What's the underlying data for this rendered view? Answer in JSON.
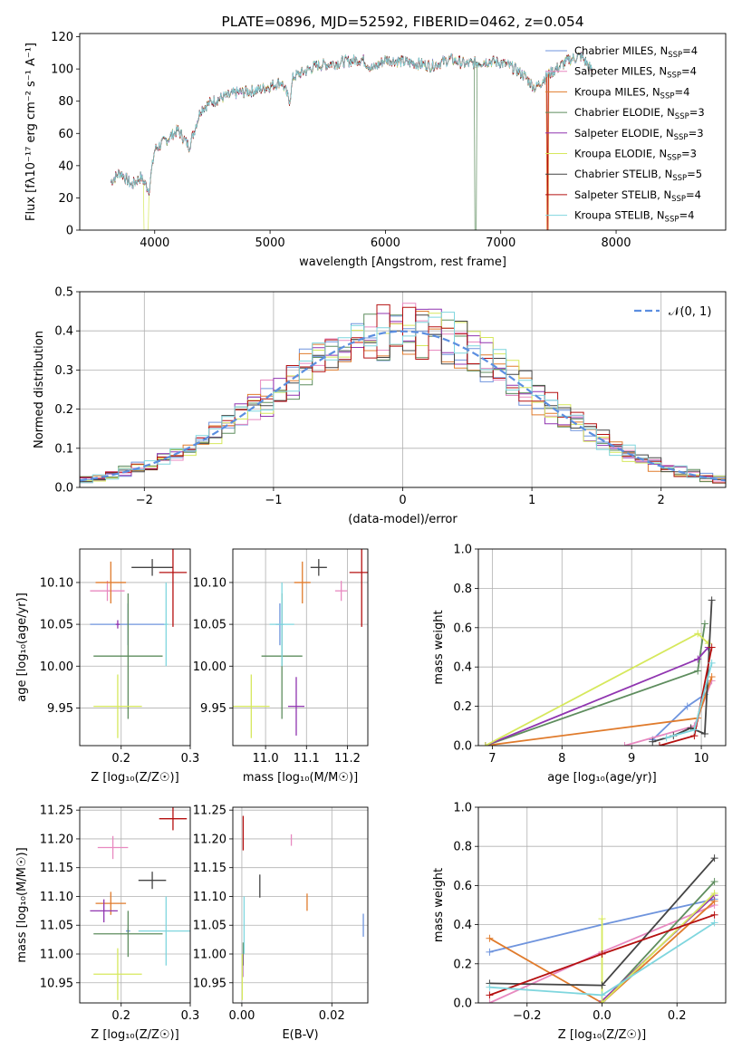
{
  "figure_title": "PLATE=0896, MJD=52592, FIBERID=0462, z=0.054",
  "colors": {
    "chabrier_miles": "#6f94dd",
    "salpeter_miles": "#e889c0",
    "kroupa_miles": "#e07b2c",
    "chabrier_elodie": "#5e8d5e",
    "salpeter_elodie": "#9035b0",
    "kroupa_elodie": "#d6e85c",
    "chabrier_stelib": "#444444",
    "salpeter_stelib": "#b51010",
    "kroupa_stelib": "#7fd6de",
    "gaussian": "#5b8ee0",
    "grid": "#b0b0b0"
  },
  "chart_data": [
    {
      "id": "spectrum",
      "type": "line",
      "title": "PLATE=0896, MJD=52592, FIBERID=0462, z=0.054",
      "xlabel": "wavelength [Angstrom, rest frame]",
      "ylabel": "Flux [fλ10⁻¹⁷ erg cm⁻² s⁻¹ A⁻¹]",
      "xlim": [
        3350,
        8950
      ],
      "ylim": [
        0,
        122
      ],
      "xticks": [
        4000,
        5000,
        6000,
        7000,
        8000
      ],
      "yticks": [
        0,
        20,
        40,
        60,
        80,
        100,
        120
      ],
      "grid": false,
      "legend_position": "top-right",
      "x": [
        3620,
        3700,
        3800,
        3880,
        3950,
        4000,
        4100,
        4200,
        4300,
        4400,
        4500,
        4700,
        4900,
        5100,
        5170,
        5200,
        5400,
        5600,
        5800,
        5890,
        6000,
        6200,
        6400,
        6560,
        6700,
        6900,
        7000,
        7100,
        7200,
        7300,
        7400,
        7600,
        7700,
        7800
      ],
      "y": [
        30,
        36,
        28,
        33,
        25,
        50,
        56,
        62,
        52,
        75,
        80,
        85,
        87,
        92,
        80,
        95,
        102,
        104,
        106,
        100,
        106,
        104,
        102,
        106,
        103,
        105,
        104,
        101,
        96,
        88,
        96,
        106,
        108,
        98
      ],
      "series": [
        {
          "name": "Chabrier MILES, N_SSP=4",
          "label_main": "Chabrier MILES, N",
          "label_sub": "SSP",
          "label_end": "=4"
        },
        {
          "name": "Salpeter MILES, N_SSP=4",
          "label_main": "Salpeter MILES, N",
          "label_sub": "SSP",
          "label_end": "=4"
        },
        {
          "name": "Kroupa MILES, N_SSP=4",
          "label_main": "Kroupa MILES, N",
          "label_sub": "SSP",
          "label_end": "=4"
        },
        {
          "name": "Chabrier ELODIE, N_SSP=3",
          "label_main": "Chabrier ELODIE, N",
          "label_sub": "SSP",
          "label_end": "=3"
        },
        {
          "name": "Salpeter ELODIE, N_SSP=3",
          "label_main": "Salpeter ELODIE, N",
          "label_sub": "SSP",
          "label_end": "=3"
        },
        {
          "name": "Kroupa ELODIE, N_SSP=3",
          "label_main": "Kroupa ELODIE, N",
          "label_sub": "SSP",
          "label_end": "=3"
        },
        {
          "name": "Chabrier STELIB, N_SSP=5",
          "label_main": "Chabrier STELIB, N",
          "label_sub": "SSP",
          "label_end": "=5"
        },
        {
          "name": "Salpeter STELIB, N_SSP=4",
          "label_main": "Salpeter STELIB, N",
          "label_sub": "SSP",
          "label_end": "=4"
        },
        {
          "name": "Kroupa STELIB, N_SSP=4",
          "label_main": "Kroupa STELIB, N",
          "label_sub": "SSP",
          "label_end": "=4"
        }
      ]
    },
    {
      "id": "residuals",
      "type": "histogram",
      "xlabel": "(data-model)/error",
      "ylabel": "Normed distribution",
      "xlim": [
        -2.5,
        2.5
      ],
      "ylim": [
        0,
        0.5
      ],
      "xticks": [
        -2,
        -1,
        0,
        1,
        2
      ],
      "yticks": [
        0.0,
        0.1,
        0.2,
        0.3,
        0.4,
        0.5
      ],
      "grid": true,
      "legend_position": "top-right",
      "legend": "𝒩(0, 1)",
      "bin_width": 0.1,
      "bins_from": -2.5,
      "gaussian_mean": 0,
      "gaussian_sigma": 1
    },
    {
      "id": "age_vs_Z",
      "type": "errorbar",
      "xlabel": "Z [log₁₀(Z/Z☉)]",
      "ylabel": "age  [log₁₀(age/yr)]",
      "xlim": [
        0.14,
        0.3
      ],
      "ylim": [
        9.905,
        10.14
      ],
      "xticks": [
        0.2,
        0.3
      ],
      "yticks": [
        9.95,
        10.0,
        10.05,
        10.1
      ],
      "grid": true,
      "points": [
        {
          "model": "chabrier_miles",
          "x": 0.21,
          "y": 10.05,
          "xerr": 0.055,
          "yerr": 0.025
        },
        {
          "model": "salpeter_miles",
          "x": 0.18,
          "y": 10.09,
          "xerr": 0.025,
          "yerr": 0.012
        },
        {
          "model": "kroupa_miles",
          "x": 0.185,
          "y": 10.1,
          "xerr": 0.022,
          "yerr": 0.025
        },
        {
          "model": "chabrier_elodie",
          "x": 0.21,
          "y": 10.012,
          "xerr": 0.05,
          "yerr": 0.075
        },
        {
          "model": "salpeter_elodie",
          "x": 0.195,
          "y": 10.05,
          "xerr": 0.003,
          "yerr": 0.005
        },
        {
          "model": "kroupa_elodie",
          "x": 0.195,
          "y": 9.952,
          "xerr": 0.035,
          "yerr": 0.038
        },
        {
          "model": "chabrier_stelib",
          "x": 0.245,
          "y": 10.118,
          "xerr": 0.03,
          "yerr": 0.01
        },
        {
          "model": "salpeter_stelib",
          "x": 0.275,
          "y": 10.112,
          "xerr": 0.02,
          "yerr": 0.065
        },
        {
          "model": "kroupa_stelib",
          "x": 0.265,
          "y": 10.05,
          "xerr": 0.003,
          "yerr": 0.05
        }
      ]
    },
    {
      "id": "age_vs_mass",
      "type": "errorbar",
      "xlabel": "mass [log₁₀(M/M☉)]",
      "ylabel": "",
      "xlim": [
        10.92,
        11.25
      ],
      "ylim": [
        9.905,
        10.14
      ],
      "xticks": [
        11.0,
        11.1,
        11.2
      ],
      "yticks": [
        9.95,
        10.0,
        10.05,
        10.1
      ],
      "grid": true,
      "points": [
        {
          "model": "chabrier_miles",
          "x": 11.035,
          "y": 10.05,
          "xerr": 0.01,
          "yerr": 0.025
        },
        {
          "model": "salpeter_miles",
          "x": 11.185,
          "y": 10.09,
          "xerr": 0.015,
          "yerr": 0.012
        },
        {
          "model": "kroupa_miles",
          "x": 11.09,
          "y": 10.1,
          "xerr": 0.02,
          "yerr": 0.025
        },
        {
          "model": "chabrier_elodie",
          "x": 11.04,
          "y": 10.012,
          "xerr": 0.05,
          "yerr": 0.075
        },
        {
          "model": "salpeter_elodie",
          "x": 11.075,
          "y": 9.952,
          "xerr": 0.02,
          "yerr": 0.035
        },
        {
          "model": "kroupa_elodie",
          "x": 10.965,
          "y": 9.952,
          "xerr": 0.045,
          "yerr": 0.038
        },
        {
          "model": "chabrier_stelib",
          "x": 11.13,
          "y": 10.118,
          "xerr": 0.02,
          "yerr": 0.01
        },
        {
          "model": "salpeter_stelib",
          "x": 11.235,
          "y": 10.112,
          "xerr": 0.03,
          "yerr": 0.065
        },
        {
          "model": "kroupa_stelib",
          "x": 11.04,
          "y": 10.05,
          "xerr": 0.03,
          "yerr": 0.05
        }
      ]
    },
    {
      "id": "mass_vs_Z",
      "type": "errorbar",
      "xlabel": "Z [log₁₀(Z/Z☉)]",
      "ylabel": "mass [log₁₀(M/M☉)]",
      "xlim": [
        0.14,
        0.3
      ],
      "ylim": [
        10.915,
        11.255
      ],
      "xticks": [
        0.2,
        0.3
      ],
      "yticks": [
        10.95,
        11.0,
        11.05,
        11.1,
        11.15,
        11.2,
        11.25
      ],
      "grid": true,
      "points": [
        {
          "model": "chabrier_miles",
          "x": 0.21,
          "y": 11.04,
          "xerr": 0.003,
          "yerr": 0.005
        },
        {
          "model": "salpeter_miles",
          "x": 0.188,
          "y": 11.185,
          "xerr": 0.022,
          "yerr": 0.02
        },
        {
          "model": "kroupa_miles",
          "x": 0.185,
          "y": 11.088,
          "xerr": 0.022,
          "yerr": 0.02
        },
        {
          "model": "chabrier_elodie",
          "x": 0.21,
          "y": 11.035,
          "xerr": 0.05,
          "yerr": 0.04
        },
        {
          "model": "salpeter_elodie",
          "x": 0.175,
          "y": 11.075,
          "xerr": 0.02,
          "yerr": 0.02
        },
        {
          "model": "kroupa_elodie",
          "x": 0.195,
          "y": 10.965,
          "xerr": 0.035,
          "yerr": 0.045
        },
        {
          "model": "chabrier_stelib",
          "x": 0.245,
          "y": 11.128,
          "xerr": 0.02,
          "yerr": 0.015
        },
        {
          "model": "salpeter_stelib",
          "x": 0.275,
          "y": 11.235,
          "xerr": 0.02,
          "yerr": 0.02
        },
        {
          "model": "kroupa_stelib",
          "x": 0.265,
          "y": 11.04,
          "xerr": 0.04,
          "yerr": 0.06
        }
      ]
    },
    {
      "id": "mass_vs_ebv",
      "type": "errorbar",
      "xlabel": "E(B-V)",
      "ylabel": "",
      "xlim": [
        -0.002,
        0.028
      ],
      "ylim": [
        10.915,
        11.255
      ],
      "xticks": [
        0.0,
        0.02
      ],
      "yticks": [
        10.95,
        11.0,
        11.05,
        11.1,
        11.15,
        11.2,
        11.25
      ],
      "grid": true,
      "points": [
        {
          "model": "chabrier_miles",
          "x": 0.027,
          "y": 11.05,
          "xerr": 0.0,
          "yerr": 0.02
        },
        {
          "model": "salpeter_miles",
          "x": 0.011,
          "y": 11.198,
          "xerr": 0.0,
          "yerr": 0.01
        },
        {
          "model": "kroupa_miles",
          "x": 0.0145,
          "y": 11.09,
          "xerr": 0.0,
          "yerr": 0.015
        },
        {
          "model": "chabrier_elodie",
          "x": 0.0003,
          "y": 11.0,
          "xerr": 0.0,
          "yerr": 0.02
        },
        {
          "model": "salpeter_elodie",
          "x": 0.0002,
          "y": 10.98,
          "xerr": 0.0,
          "yerr": 0.02
        },
        {
          "model": "kroupa_elodie",
          "x": 0.0001,
          "y": 10.96,
          "xerr": 0.0,
          "yerr": 0.04
        },
        {
          "model": "chabrier_stelib",
          "x": 0.004,
          "y": 11.118,
          "xerr": 0.0,
          "yerr": 0.02
        },
        {
          "model": "salpeter_stelib",
          "x": 0.0003,
          "y": 11.21,
          "xerr": 0.0,
          "yerr": 0.03
        },
        {
          "model": "kroupa_stelib",
          "x": 0.0005,
          "y": 11.05,
          "xerr": 0.0,
          "yerr": 0.05
        }
      ]
    },
    {
      "id": "weight_vs_age",
      "type": "line",
      "xlabel": "age  [log₁₀(age/yr)]",
      "ylabel": "mass weight",
      "xlim": [
        6.8,
        10.35
      ],
      "ylim": [
        0,
        1
      ],
      "xticks": [
        7,
        8,
        9,
        10
      ],
      "yticks": [
        0.0,
        0.2,
        0.4,
        0.6,
        0.8,
        1.0
      ],
      "grid": true,
      "series": [
        {
          "model": "chabrier_miles",
          "x": [
            9.3,
            9.8,
            10.05
          ],
          "y": [
            0.03,
            0.2,
            0.26
          ]
        },
        {
          "model": "salpeter_miles",
          "x": [
            8.9,
            9.9,
            10.15
          ],
          "y": [
            0.0,
            0.1,
            0.33
          ]
        },
        {
          "model": "kroupa_miles",
          "x": [
            6.9,
            9.95,
            10.15
          ],
          "y": [
            0.0,
            0.14,
            0.35
          ]
        },
        {
          "model": "chabrier_elodie",
          "x": [
            6.9,
            9.95,
            10.05
          ],
          "y": [
            0.0,
            0.38,
            0.62
          ]
        },
        {
          "model": "salpeter_elodie",
          "x": [
            6.9,
            9.95,
            10.1
          ],
          "y": [
            0.0,
            0.44,
            0.5
          ]
        },
        {
          "model": "kroupa_elodie",
          "x": [
            6.9,
            9.95,
            10.1
          ],
          "y": [
            0.0,
            0.57,
            0.52
          ]
        },
        {
          "model": "chabrier_stelib",
          "x": [
            9.3,
            9.6,
            9.85,
            10.05,
            10.15
          ],
          "y": [
            0.02,
            0.05,
            0.09,
            0.06,
            0.74
          ]
        },
        {
          "model": "salpeter_stelib",
          "x": [
            9.4,
            9.9,
            10.15
          ],
          "y": [
            0.0,
            0.05,
            0.5
          ]
        },
        {
          "model": "kroupa_stelib",
          "x": [
            9.5,
            9.9,
            10.15
          ],
          "y": [
            0.04,
            0.08,
            0.42
          ]
        }
      ]
    },
    {
      "id": "weight_vs_Z",
      "type": "line",
      "xlabel": "Z [log₁₀(Z/Z☉)]",
      "ylabel": "mass weight",
      "xlim": [
        -0.33,
        0.33
      ],
      "ylim": [
        0,
        1
      ],
      "xticks": [
        -0.2,
        0.0,
        0.2
      ],
      "yticks": [
        0.0,
        0.2,
        0.4,
        0.6,
        0.8,
        1.0
      ],
      "grid": true,
      "series": [
        {
          "model": "chabrier_miles",
          "x": [
            -0.3,
            0.0,
            0.3
          ],
          "y": [
            0.26,
            0.4,
            0.53
          ]
        },
        {
          "model": "salpeter_miles",
          "x": [
            -0.3,
            0.0,
            0.3
          ],
          "y": [
            0.0,
            0.26,
            0.5
          ]
        },
        {
          "model": "kroupa_miles",
          "x": [
            -0.3,
            0.0,
            0.3
          ],
          "y": [
            0.33,
            0.0,
            0.52
          ]
        },
        {
          "model": "chabrier_elodie",
          "x": [
            0.0,
            0.3
          ],
          "y": [
            0.0,
            0.62
          ]
        },
        {
          "model": "salpeter_elodie",
          "x": [
            0.0,
            0.3
          ],
          "y": [
            0.01,
            0.55
          ]
        },
        {
          "model": "kroupa_elodie",
          "x": [
            0.0,
            0.0,
            0.3
          ],
          "y": [
            0.43,
            0.0,
            0.56
          ]
        },
        {
          "model": "chabrier_stelib",
          "x": [
            -0.3,
            0.0,
            0.3
          ],
          "y": [
            0.1,
            0.09,
            0.74
          ]
        },
        {
          "model": "salpeter_stelib",
          "x": [
            -0.3,
            0.0,
            0.3
          ],
          "y": [
            0.04,
            0.25,
            0.45
          ]
        },
        {
          "model": "kroupa_stelib",
          "x": [
            -0.3,
            0.0,
            0.3
          ],
          "y": [
            0.08,
            0.04,
            0.41
          ]
        }
      ]
    }
  ]
}
